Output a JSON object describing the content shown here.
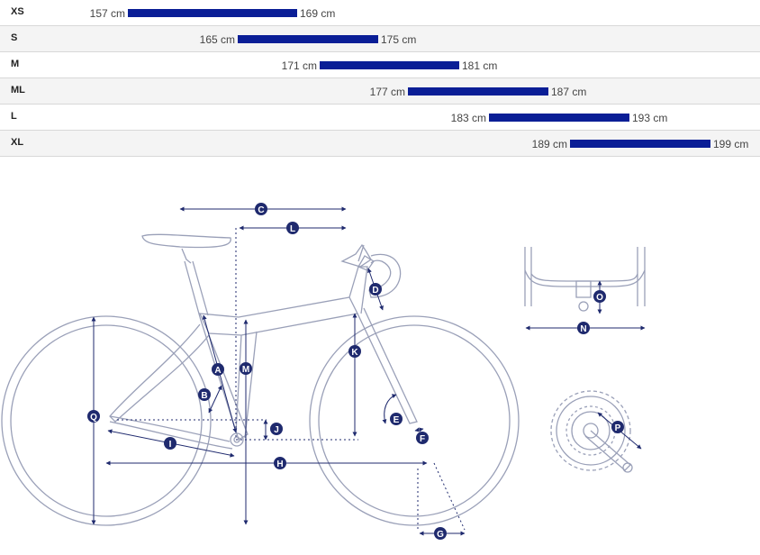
{
  "sizes": [
    {
      "label": "XS",
      "min": "157 cm",
      "max": "169 cm"
    },
    {
      "label": "S",
      "min": "165 cm",
      "max": "175 cm"
    },
    {
      "label": "M",
      "min": "171 cm",
      "max": "181 cm"
    },
    {
      "label": "ML",
      "min": "177 cm",
      "max": "187 cm"
    },
    {
      "label": "L",
      "min": "183 cm",
      "max": "193 cm"
    },
    {
      "label": "XL",
      "min": "189 cm",
      "max": "199 cm"
    }
  ],
  "geometry_labels": {
    "A": "A",
    "B": "B",
    "C": "C",
    "D": "D",
    "E": "E",
    "F": "F",
    "G": "G",
    "H": "H",
    "I": "I",
    "J": "J",
    "K": "K",
    "L": "L",
    "M": "M",
    "N": "N",
    "O": "O",
    "P": "P",
    "Q": "Q"
  },
  "colors": {
    "accent": "#0a1e96",
    "lines": "#9aa0b8",
    "dim": "#1f2a6e"
  }
}
